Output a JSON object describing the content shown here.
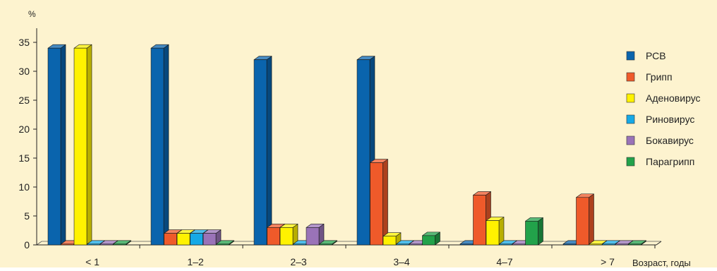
{
  "chart_data": {
    "type": "bar",
    "ylabel": "%",
    "xlabel": "Возраст, годы",
    "ylim": [
      0,
      35
    ],
    "yticks": [
      0,
      5,
      10,
      15,
      20,
      25,
      30,
      35
    ],
    "grid": false,
    "legend_position": "right",
    "style": "3d",
    "background_color": "#fdf3cf",
    "categories": [
      "< 1",
      "1–2",
      "2–3",
      "3–4",
      "4–7",
      "> 7"
    ],
    "series": [
      {
        "name": "РСВ",
        "color": "#0a64ad",
        "values": [
          34,
          34,
          32,
          32,
          0,
          0
        ]
      },
      {
        "name": "Грипп",
        "color": "#ef5a2a",
        "values": [
          0,
          2,
          3,
          14.2,
          8.6,
          8.2
        ]
      },
      {
        "name": "Аденовирус",
        "color": "#fff200",
        "values": [
          34,
          2,
          3,
          1.5,
          4.2,
          0
        ]
      },
      {
        "name": "Риновирус",
        "color": "#16a9e6",
        "values": [
          0,
          2,
          0,
          0,
          0,
          0
        ]
      },
      {
        "name": "Бокавирус",
        "color": "#9a73b8",
        "values": [
          0,
          2,
          3,
          0,
          0,
          0
        ]
      },
      {
        "name": "Парагрипп",
        "color": "#22a24a",
        "values": [
          0,
          0,
          0,
          1.6,
          4.1,
          0
        ]
      }
    ]
  }
}
